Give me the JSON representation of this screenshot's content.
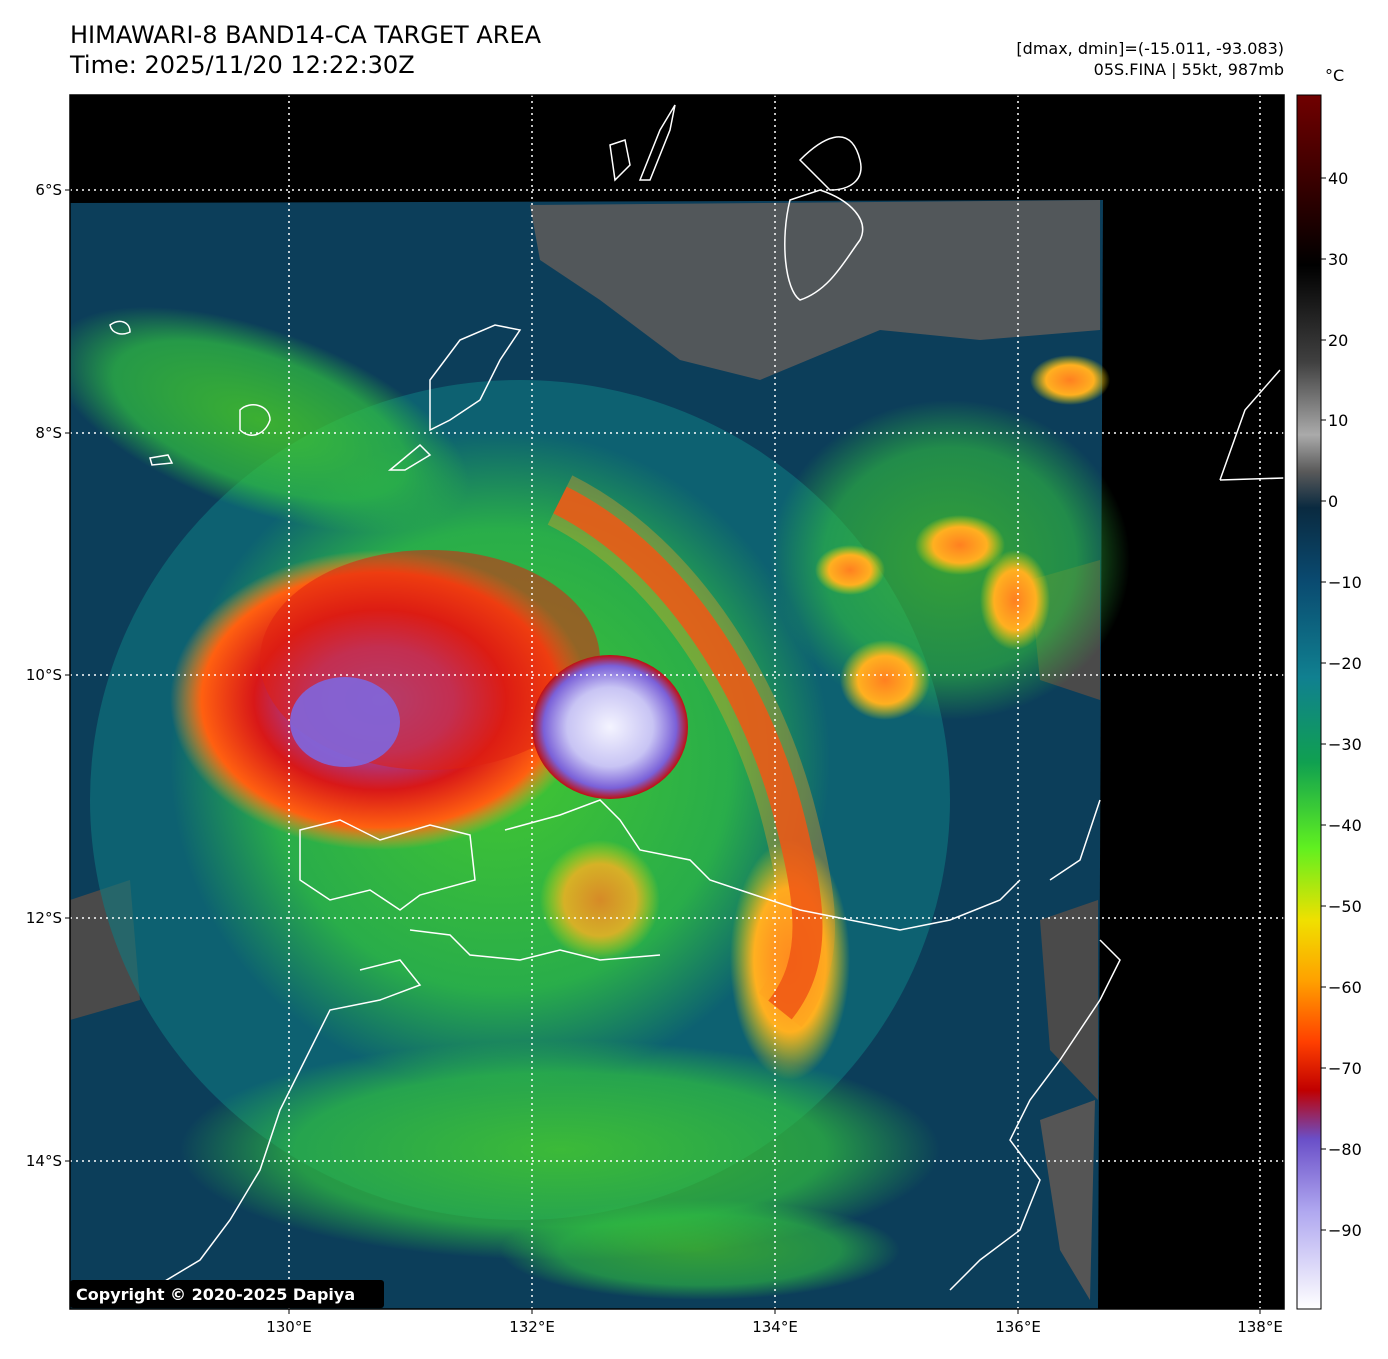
{
  "header": {
    "title_line1": "HIMAWARI-8 BAND14-CA TARGET AREA",
    "title_line2": "Time: 2025/11/20 12:22:30Z",
    "meta_line1": "[dmax, dmin]=(-15.011, -93.083)",
    "meta_line2": "05S.FINA | 55kt, 987mb"
  },
  "map": {
    "lon_ticks": [
      "130°E",
      "132°E",
      "134°E",
      "136°E",
      "138°E"
    ],
    "lat_ticks": [
      "6°S",
      "8°S",
      "10°S",
      "12°S",
      "14°S"
    ],
    "gridlines": "dotted",
    "copyright": "Copyright © 2020-2025 Dapiya"
  },
  "colorbar": {
    "unit": "°C",
    "ticks": [
      "40",
      "30",
      "20",
      "10",
      "0",
      "−10",
      "−20",
      "−30",
      "−40",
      "−50",
      "−60",
      "−70",
      "−80",
      "−90"
    ],
    "colors": [
      "#ffffff",
      "#9a90e8",
      "#6a4fc8",
      "#c00000",
      "#ff4000",
      "#ff9000",
      "#f0e000",
      "#60f020",
      "#10a050",
      "#108090",
      "#0a4a70",
      "#4a4a4a",
      "#000000",
      "#500000"
    ]
  }
}
